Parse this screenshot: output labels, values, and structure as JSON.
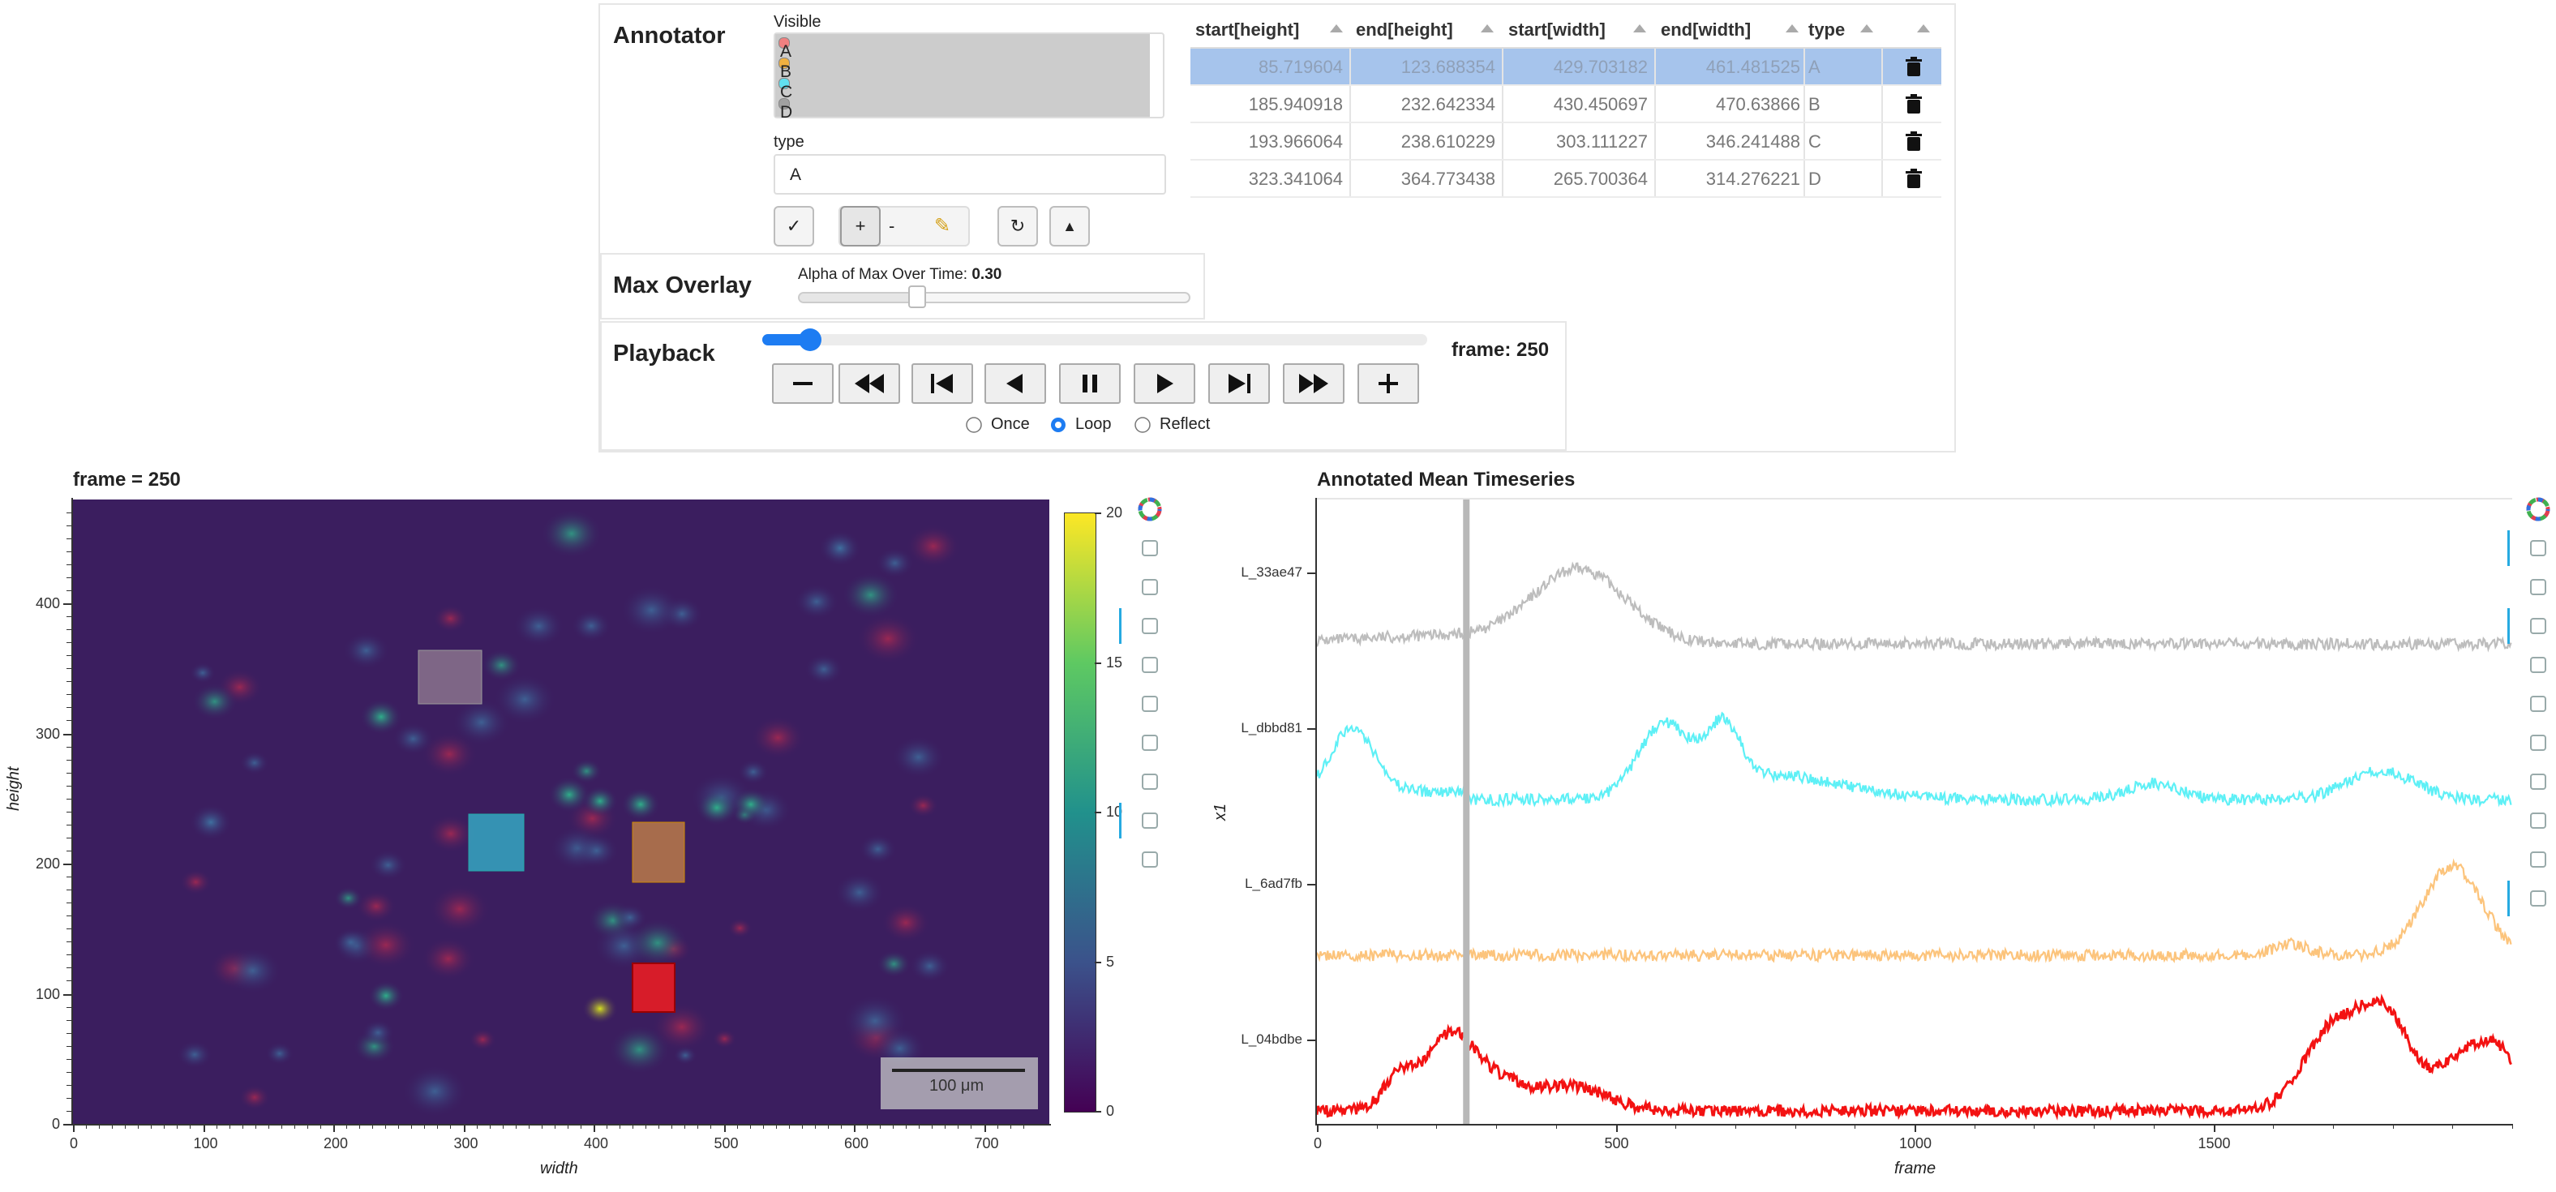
{
  "annotator": {
    "title": "Annotator",
    "visible_label": "Visible",
    "categories": [
      {
        "name": "A",
        "color": "#f08080"
      },
      {
        "name": "B",
        "color": "#f0b040"
      },
      {
        "name": "C",
        "color": "#60e0f0"
      },
      {
        "name": "D",
        "color": "#a0a0a0"
      }
    ],
    "type_label": "type",
    "type_value": "A",
    "tool_buttons": [
      "✓",
      "+",
      "-",
      "✎",
      "↻",
      "▲"
    ]
  },
  "table": {
    "columns": [
      "start[height]",
      "end[height]",
      "start[width]",
      "end[width]",
      "type",
      ""
    ],
    "rows": [
      [
        "85.719604",
        "123.688354",
        "429.703182",
        "461.481525",
        "A"
      ],
      [
        "185.940918",
        "232.642334",
        "430.450697",
        "470.63866",
        "B"
      ],
      [
        "193.966064",
        "238.610229",
        "303.111227",
        "346.241488",
        "C"
      ],
      [
        "323.341064",
        "364.773438",
        "265.700364",
        "314.276221",
        "D"
      ]
    ],
    "selected_row": 0
  },
  "max_overlay": {
    "title": "Max Overlay",
    "alpha_label": "Alpha of Max Over Time: ",
    "alpha_value": "0.30",
    "alpha_fraction": 0.3
  },
  "playback": {
    "title": "Playback",
    "frame_label": "frame: 250",
    "slider_fraction": 0.06,
    "modes": [
      "Once",
      "Loop",
      "Reflect"
    ],
    "selected_mode": "Loop"
  },
  "image_plot": {
    "title": "frame = 250",
    "xlabel": "width",
    "ylabel": "height",
    "xticks": [
      "0",
      "100",
      "200",
      "300",
      "400",
      "500",
      "600",
      "700"
    ],
    "yticks": [
      "0",
      "100",
      "200",
      "300",
      "400"
    ],
    "colorbar_ticks": [
      "0",
      "5",
      "10",
      "15",
      "20"
    ],
    "scalebar": "100 μm"
  },
  "timeseries_plot": {
    "title": "Annotated Mean Timeseries",
    "xlabel": "frame",
    "ylabel": "x1",
    "xticks": [
      "0",
      "500",
      "1000",
      "1500"
    ],
    "series": [
      {
        "name": "L_33ae47",
        "color": "#bdbdbd"
      },
      {
        "name": "L_dbbd81",
        "color": "#5ef0f6"
      },
      {
        "name": "L_6ad7fb",
        "color": "#fcc47c"
      },
      {
        "name": "L_04bdbe",
        "color": "#f31212"
      }
    ],
    "current_frame": 250
  }
}
